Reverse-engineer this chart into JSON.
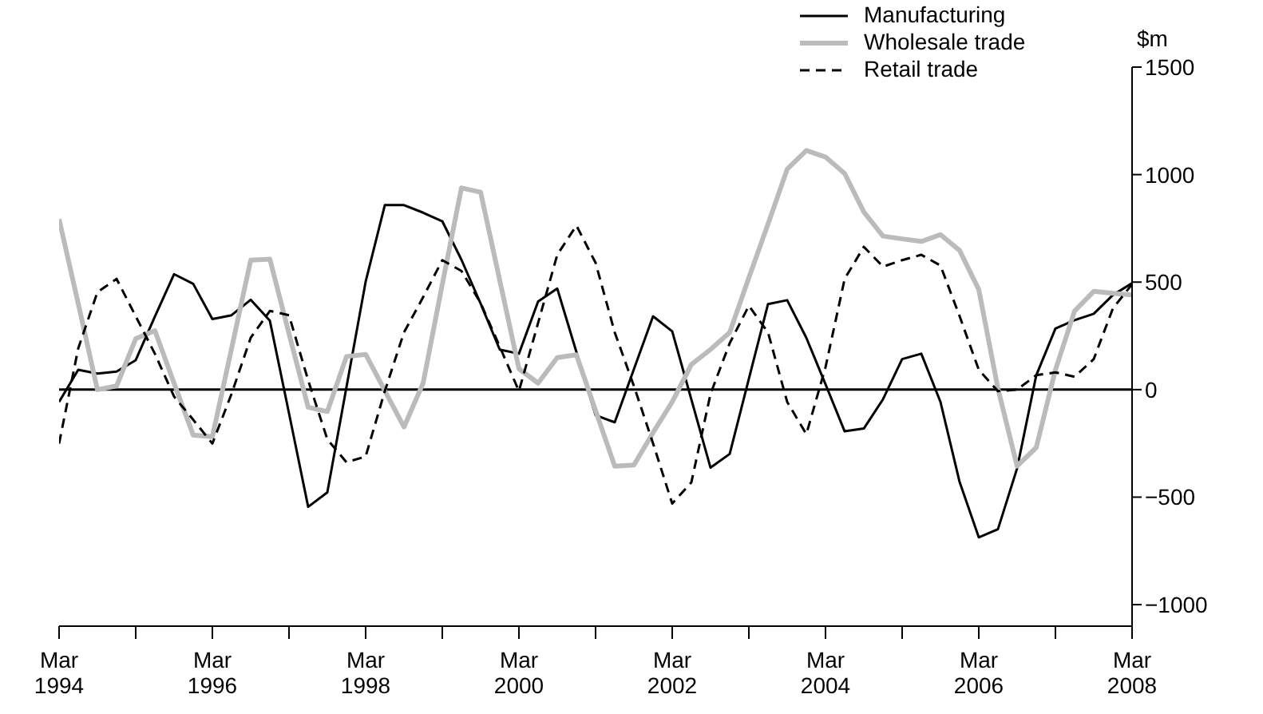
{
  "chart_data": {
    "type": "line",
    "ylabel": "$m",
    "x": [
      "1994-03",
      "1994-06",
      "1994-09",
      "1994-12",
      "1995-03",
      "1995-06",
      "1995-09",
      "1995-12",
      "1996-03",
      "1996-06",
      "1996-09",
      "1996-12",
      "1997-03",
      "1997-06",
      "1997-09",
      "1997-12",
      "1998-03",
      "1998-06",
      "1998-09",
      "1998-12",
      "1999-03",
      "1999-06",
      "1999-09",
      "1999-12",
      "2000-03",
      "2000-06",
      "2000-09",
      "2000-12",
      "2001-03",
      "2001-06",
      "2001-09",
      "2001-12",
      "2002-03",
      "2002-06",
      "2002-09",
      "2002-12",
      "2003-03",
      "2003-06",
      "2003-09",
      "2003-12",
      "2004-03",
      "2004-06",
      "2004-09",
      "2004-12",
      "2005-03",
      "2005-06",
      "2005-09",
      "2005-12",
      "2006-03",
      "2006-06",
      "2006-09",
      "2006-12",
      "2007-03",
      "2007-06",
      "2007-09",
      "2007-12",
      "2008-03"
    ],
    "series": [
      {
        "name": "Manufacturing",
        "color": "#000000",
        "values": [
          -57,
          92,
          75,
          84,
          137,
          340,
          537,
          492,
          328,
          346,
          418,
          321,
          -110,
          -545,
          -478,
          12,
          502,
          858,
          858,
          823,
          783,
          604,
          400,
          186,
          167,
          410,
          470,
          175,
          -119,
          -152,
          95,
          341,
          271,
          -46,
          -363,
          -299,
          50,
          398,
          416,
          241,
          25,
          -194,
          -181,
          -45,
          142,
          167,
          -57,
          -430,
          -687,
          -649,
          -366,
          67,
          284,
          323,
          353,
          440,
          495
        ]
      },
      {
        "name": "Wholesale trade",
        "color": "#bbbbbb",
        "values": [
          793,
          400,
          0,
          17,
          237,
          274,
          30,
          -211,
          -219,
          190,
          602,
          607,
          260,
          -82,
          -102,
          154,
          164,
          -5,
          -174,
          30,
          490,
          938,
          918,
          508,
          97,
          30,
          149,
          162,
          -97,
          -356,
          -351,
          -200,
          -57,
          117,
          187,
          266,
          520,
          770,
          1025,
          1112,
          1082,
          1005,
          826,
          714,
          701,
          689,
          721,
          647,
          465,
          5,
          -356,
          -269,
          92,
          366,
          457,
          448,
          440
        ]
      },
      {
        "name": "Retail trade",
        "color": "#000000",
        "line_style": "dashed",
        "values": [
          -251,
          192,
          453,
          515,
          341,
          167,
          -32,
          -140,
          -251,
          -20,
          241,
          366,
          346,
          43,
          -231,
          -338,
          -311,
          -7,
          266,
          430,
          602,
          552,
          403,
          200,
          -7,
          310,
          627,
          763,
          590,
          266,
          17,
          -250,
          -530,
          -431,
          -20,
          216,
          390,
          266,
          -57,
          -207,
          104,
          515,
          664,
          572,
          602,
          627,
          577,
          341,
          92,
          -7,
          0,
          67,
          80,
          60,
          142,
          378,
          490
        ]
      }
    ],
    "xlim": [
      "1994-03",
      "2008-03"
    ],
    "xticks": [
      {
        "value": "1994-03",
        "label": "Mar 1994"
      },
      {
        "value": "1995-03",
        "label": null
      },
      {
        "value": "1996-03",
        "label": "Mar 1996"
      },
      {
        "value": "1997-03",
        "label": null
      },
      {
        "value": "1998-03",
        "label": "Mar 1998"
      },
      {
        "value": "1999-03",
        "label": null
      },
      {
        "value": "2000-03",
        "label": "Mar 2000"
      },
      {
        "value": "2001-03",
        "label": null
      },
      {
        "value": "2002-03",
        "label": "Mar 2002"
      },
      {
        "value": "2003-03",
        "label": null
      },
      {
        "value": "2004-03",
        "label": "Mar 2004"
      },
      {
        "value": "2005-03",
        "label": null
      },
      {
        "value": "2006-03",
        "label": "Mar 2006"
      },
      {
        "value": "2007-03",
        "label": null
      },
      {
        "value": "2008-03",
        "label": "Mar 2008"
      }
    ],
    "ylim": [
      -1100,
      1500
    ],
    "yticks": [
      {
        "value": -1000,
        "label": "−1000"
      },
      {
        "value": -500,
        "label": "−500"
      },
      0,
      500,
      1000,
      1500
    ],
    "ref_lines": [
      {
        "axis": "y",
        "value": 0,
        "color": "#000000"
      }
    ],
    "grid": false,
    "legend": "top right"
  }
}
